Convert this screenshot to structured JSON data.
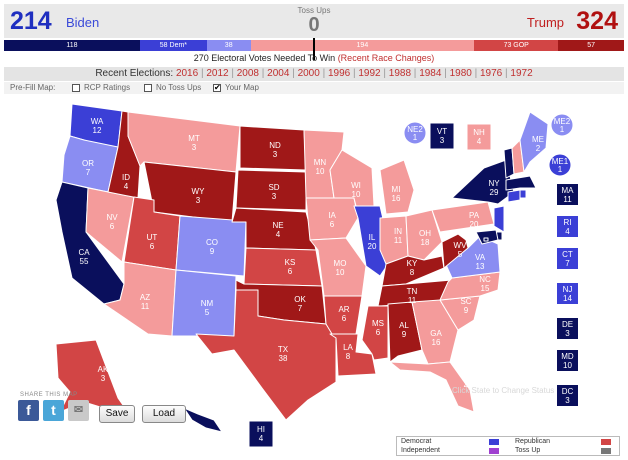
{
  "header": {
    "biden_total": "214",
    "biden_name": "Biden",
    "tossup_label": "Toss Ups",
    "tossup_total": "0",
    "trump_name": "Trump",
    "trump_total": "324"
  },
  "seat_bar": [
    {
      "label": "118",
      "value": 118,
      "color": "#0a0f5c"
    },
    {
      "label": "58 Dem*",
      "value": 58,
      "color": "#3b3fd6"
    },
    {
      "label": "38",
      "value": 38,
      "color": "#8a8df2"
    },
    {
      "label": "",
      "value": 0,
      "color": "#888888"
    },
    {
      "label": "194",
      "value": 194,
      "color": "#f49b9b"
    },
    {
      "label": "73 GOP",
      "value": 73,
      "color": "#d24545"
    },
    {
      "label": "57",
      "value": 57,
      "color": "#a01818"
    }
  ],
  "needed": {
    "text": "270 Electoral Votes Needed To Win",
    "link": "(Recent Race Changes)"
  },
  "recent": {
    "label": "Recent Elections:",
    "years": [
      "2016",
      "2012",
      "2008",
      "2004",
      "2000",
      "1996",
      "1992",
      "1988",
      "1984",
      "1980",
      "1976",
      "1972"
    ]
  },
  "prefill": {
    "label": "Pre-Fill Map:",
    "options": [
      {
        "label": "RCP Ratings",
        "checked": false
      },
      {
        "label": "No Toss Ups",
        "checked": false
      },
      {
        "label": "Your Map",
        "checked": true
      }
    ]
  },
  "colors": {
    "safe_dem": "#0a0f5c",
    "likely_dem": "#3b3fd6",
    "lean_dem": "#8a8df2",
    "lean_rep": "#f49b9b",
    "likely_rep": "#d24545",
    "safe_rep": "#a01818"
  },
  "states": [
    {
      "abbr": "WA",
      "ev": "12",
      "rating": "likely_dem"
    },
    {
      "abbr": "OR",
      "ev": "7",
      "rating": "lean_dem"
    },
    {
      "abbr": "CA",
      "ev": "55",
      "rating": "safe_dem"
    },
    {
      "abbr": "NV",
      "ev": "6",
      "rating": "lean_rep"
    },
    {
      "abbr": "ID",
      "ev": "4",
      "rating": "safe_rep"
    },
    {
      "abbr": "MT",
      "ev": "3",
      "rating": "lean_rep"
    },
    {
      "abbr": "WY",
      "ev": "3",
      "rating": "safe_rep"
    },
    {
      "abbr": "UT",
      "ev": "6",
      "rating": "likely_rep"
    },
    {
      "abbr": "AZ",
      "ev": "11",
      "rating": "lean_rep"
    },
    {
      "abbr": "CO",
      "ev": "9",
      "rating": "lean_dem"
    },
    {
      "abbr": "NM",
      "ev": "5",
      "rating": "lean_dem"
    },
    {
      "abbr": "ND",
      "ev": "3",
      "rating": "safe_rep"
    },
    {
      "abbr": "SD",
      "ev": "3",
      "rating": "safe_rep"
    },
    {
      "abbr": "NE",
      "ev": "4",
      "rating": "safe_rep"
    },
    {
      "abbr": "KS",
      "ev": "6",
      "rating": "likely_rep"
    },
    {
      "abbr": "OK",
      "ev": "7",
      "rating": "safe_rep"
    },
    {
      "abbr": "TX",
      "ev": "38",
      "rating": "likely_rep"
    },
    {
      "abbr": "MN",
      "ev": "10",
      "rating": "lean_rep"
    },
    {
      "abbr": "IA",
      "ev": "6",
      "rating": "lean_rep"
    },
    {
      "abbr": "MO",
      "ev": "10",
      "rating": "lean_rep"
    },
    {
      "abbr": "AR",
      "ev": "6",
      "rating": "likely_rep"
    },
    {
      "abbr": "LA",
      "ev": "8",
      "rating": "likely_rep"
    },
    {
      "abbr": "WI",
      "ev": "10",
      "rating": "lean_rep"
    },
    {
      "abbr": "IL",
      "ev": "20",
      "rating": "likely_dem"
    },
    {
      "abbr": "MI",
      "ev": "16",
      "rating": "lean_rep"
    },
    {
      "abbr": "IN",
      "ev": "11",
      "rating": "lean_rep"
    },
    {
      "abbr": "OH",
      "ev": "18",
      "rating": "lean_rep"
    },
    {
      "abbr": "KY",
      "ev": "8",
      "rating": "safe_rep"
    },
    {
      "abbr": "TN",
      "ev": "11",
      "rating": "safe_rep"
    },
    {
      "abbr": "MS",
      "ev": "6",
      "rating": "likely_rep"
    },
    {
      "abbr": "AL",
      "ev": "9",
      "rating": "safe_rep"
    },
    {
      "abbr": "GA",
      "ev": "16",
      "rating": "lean_rep"
    },
    {
      "abbr": "FL",
      "ev": "29",
      "rating": "lean_rep"
    },
    {
      "abbr": "SC",
      "ev": "9",
      "rating": "lean_rep"
    },
    {
      "abbr": "NC",
      "ev": "15",
      "rating": "lean_rep"
    },
    {
      "abbr": "VA",
      "ev": "13",
      "rating": "lean_dem"
    },
    {
      "abbr": "WV",
      "ev": "5",
      "rating": "safe_rep"
    },
    {
      "abbr": "PA",
      "ev": "20",
      "rating": "lean_rep"
    },
    {
      "abbr": "NY",
      "ev": "29",
      "rating": "safe_dem"
    },
    {
      "abbr": "VT",
      "ev": "3",
      "rating": "safe_dem"
    },
    {
      "abbr": "NH",
      "ev": "4",
      "rating": "lean_rep"
    },
    {
      "abbr": "ME",
      "ev": "2",
      "rating": "lean_dem"
    },
    {
      "abbr": "NE2",
      "ev": "1",
      "rating": "lean_dem"
    },
    {
      "abbr": "ME2",
      "ev": "1",
      "rating": "lean_dem"
    },
    {
      "abbr": "ME1",
      "ev": "1",
      "rating": "likely_dem"
    },
    {
      "abbr": "AK",
      "ev": "3",
      "rating": "likely_rep"
    },
    {
      "abbr": "HI",
      "ev": "4",
      "rating": "safe_dem"
    },
    {
      "abbr": "MA",
      "ev": "11",
      "rating": "safe_dem"
    },
    {
      "abbr": "RI",
      "ev": "4",
      "rating": "likely_dem"
    },
    {
      "abbr": "CT",
      "ev": "7",
      "rating": "likely_dem"
    },
    {
      "abbr": "NJ",
      "ev": "14",
      "rating": "likely_dem"
    },
    {
      "abbr": "DE",
      "ev": "3",
      "rating": "safe_dem"
    },
    {
      "abbr": "MD",
      "ev": "10",
      "rating": "safe_dem"
    },
    {
      "abbr": "DC",
      "ev": "3",
      "rating": "safe_dem"
    }
  ],
  "share": {
    "label": "SHARE THIS MAP",
    "icons": [
      "facebook-icon",
      "twitter-icon",
      "email-icon"
    ],
    "save_label": "Save",
    "load_label": "Load"
  },
  "hint": "Click State to Change Status",
  "legend": {
    "democrat": "Democrat",
    "independent": "Independent",
    "republican": "Republican",
    "tossup": "Toss Up"
  }
}
